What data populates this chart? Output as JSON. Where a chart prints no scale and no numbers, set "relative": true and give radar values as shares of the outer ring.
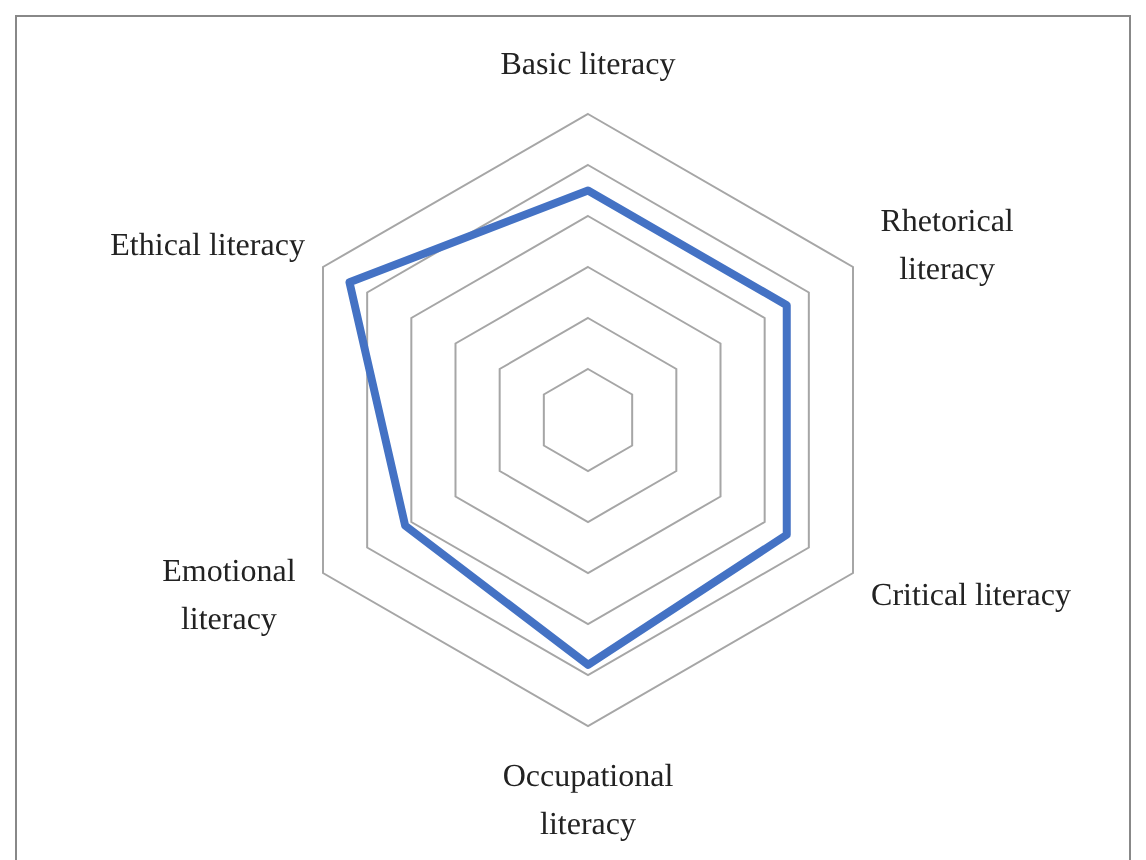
{
  "chart_data": {
    "type": "radar",
    "relative": true,
    "grid": true,
    "categories": [
      "Basic literacy",
      "Rhetorical literacy",
      "Critical literacy",
      "Occupational literacy",
      "Emotional literacy",
      "Ethical literacy"
    ],
    "series": [
      {
        "color": "#4472c4",
        "values": [
          0.75,
          0.75,
          0.75,
          0.8,
          0.69,
          0.9
        ]
      }
    ]
  }
}
